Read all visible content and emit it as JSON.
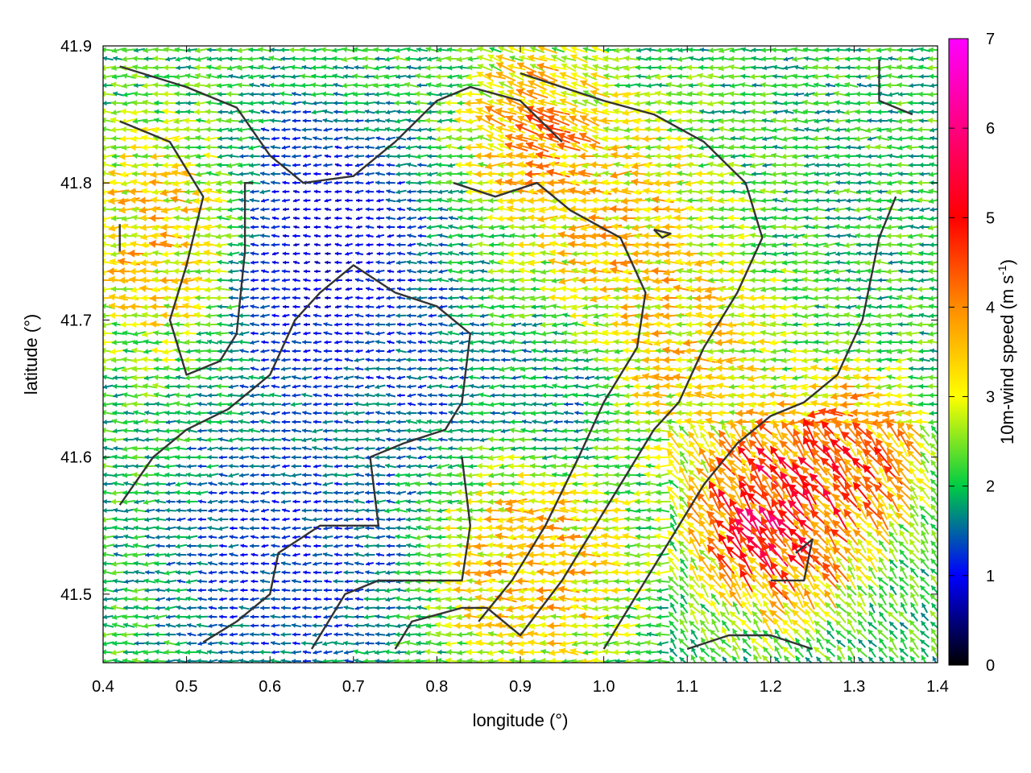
{
  "chart_data": {
    "type": "vector-field",
    "xlabel": "longitude (°)",
    "ylabel": "latitude (°)",
    "xlim": [
      0.4,
      1.4
    ],
    "ylim": [
      41.45,
      41.9
    ],
    "xticks": [
      0.4,
      0.5,
      0.6,
      0.7,
      0.8,
      0.9,
      1.0,
      1.1,
      1.2,
      1.3,
      1.4
    ],
    "xtick_labels": [
      "0.4",
      "0.5",
      "0.6",
      "0.7",
      "0.8",
      "0.9",
      "1.0",
      "1.1",
      "1.2",
      "1.3",
      "1.4"
    ],
    "yticks": [
      41.5,
      41.6,
      41.7,
      41.8,
      41.9
    ],
    "ytick_labels": [
      "41.5",
      "41.6",
      "41.7",
      "41.8",
      "41.9"
    ],
    "grid": true,
    "colorbar": {
      "label_main": "10m-wind speed (m s",
      "label_sup": "-1",
      "label_close": ")",
      "range": [
        0,
        7
      ],
      "ticks": [
        0,
        1,
        2,
        3,
        4,
        5,
        6,
        7
      ],
      "tick_labels": [
        "0",
        "1",
        "2",
        "3",
        "4",
        "5",
        "6",
        "7"
      ],
      "colors": [
        "#000000",
        "#0000ff",
        "#00cc44",
        "#ffff00",
        "#ff8c00",
        "#ff0000",
        "#ff00ff"
      ]
    },
    "wind_field": {
      "dominant_direction_deg": 270,
      "speed_regions": [
        {
          "lon": 0.48,
          "lat": 41.76,
          "radius_deg": 0.08,
          "speed": 3.8
        },
        {
          "lon": 0.65,
          "lat": 41.75,
          "radius_deg": 0.1,
          "speed": 0.5
        },
        {
          "lon": 0.75,
          "lat": 41.66,
          "radius_deg": 0.08,
          "speed": 1.3
        },
        {
          "lon": 0.62,
          "lat": 41.53,
          "radius_deg": 0.1,
          "speed": 1.0
        },
        {
          "lon": 0.92,
          "lat": 41.84,
          "radius_deg": 0.06,
          "speed": 4.2
        },
        {
          "lon": 1.05,
          "lat": 41.76,
          "radius_deg": 0.1,
          "speed": 3.7
        },
        {
          "lon": 1.1,
          "lat": 41.68,
          "radius_deg": 0.08,
          "speed": 3.4
        },
        {
          "lon": 0.92,
          "lat": 41.52,
          "radius_deg": 0.08,
          "speed": 3.8
        },
        {
          "lon": 1.21,
          "lat": 41.56,
          "radius_deg": 0.07,
          "speed": 5.6
        },
        {
          "lon": 1.3,
          "lat": 41.6,
          "radius_deg": 0.06,
          "speed": 4.6
        },
        {
          "lon": 1.2,
          "lat": 41.83,
          "radius_deg": 0.1,
          "speed": 2.0
        },
        {
          "lon": 0.95,
          "lat": 41.65,
          "radius_deg": 0.06,
          "speed": 1.5
        }
      ],
      "background_speed": 2.1
    },
    "contours": [
      [
        [
          0.42,
          41.885
        ],
        [
          0.5,
          41.87
        ],
        [
          0.56,
          41.855
        ],
        [
          0.6,
          41.82
        ],
        [
          0.64,
          41.8
        ],
        [
          0.7,
          41.805
        ],
        [
          0.75,
          41.83
        ],
        [
          0.8,
          41.86
        ],
        [
          0.84,
          41.87
        ],
        [
          0.9,
          41.86
        ],
        [
          0.95,
          41.83
        ]
      ],
      [
        [
          0.42,
          41.845
        ],
        [
          0.48,
          41.83
        ],
        [
          0.52,
          41.79
        ],
        [
          0.5,
          41.74
        ],
        [
          0.48,
          41.7
        ],
        [
          0.5,
          41.66
        ],
        [
          0.54,
          41.67
        ],
        [
          0.56,
          41.69
        ],
        [
          0.57,
          41.75
        ],
        [
          0.57,
          41.8
        ],
        [
          0.58,
          41.8
        ]
      ],
      [
        [
          0.42,
          41.565
        ],
        [
          0.46,
          41.6
        ],
        [
          0.5,
          41.62
        ],
        [
          0.55,
          41.635
        ],
        [
          0.6,
          41.66
        ],
        [
          0.63,
          41.7
        ],
        [
          0.66,
          41.72
        ],
        [
          0.7,
          41.74
        ],
        [
          0.75,
          41.72
        ],
        [
          0.8,
          41.71
        ],
        [
          0.84,
          41.69
        ],
        [
          0.83,
          41.64
        ],
        [
          0.81,
          41.62
        ],
        [
          0.76,
          41.61
        ],
        [
          0.72,
          41.6
        ],
        [
          0.73,
          41.55
        ],
        [
          0.66,
          41.55
        ],
        [
          0.61,
          41.53
        ],
        [
          0.6,
          41.5
        ],
        [
          0.56,
          41.48
        ],
        [
          0.52,
          41.465
        ]
      ],
      [
        [
          0.65,
          41.46
        ],
        [
          0.69,
          41.5
        ],
        [
          0.73,
          41.51
        ],
        [
          0.78,
          41.51
        ],
        [
          0.83,
          41.51
        ],
        [
          0.84,
          41.55
        ],
        [
          0.83,
          41.6
        ]
      ],
      [
        [
          0.75,
          41.46
        ],
        [
          0.77,
          41.48
        ],
        [
          0.83,
          41.49
        ],
        [
          0.86,
          41.49
        ],
        [
          0.9,
          41.47
        ],
        [
          0.95,
          41.51
        ],
        [
          0.99,
          41.55
        ],
        [
          1.02,
          41.58
        ],
        [
          1.06,
          41.62
        ],
        [
          1.09,
          41.64
        ],
        [
          1.12,
          41.68
        ],
        [
          1.16,
          41.72
        ],
        [
          1.19,
          41.76
        ],
        [
          1.17,
          41.8
        ],
        [
          1.12,
          41.83
        ],
        [
          1.06,
          41.85
        ],
        [
          1.0,
          41.86
        ],
        [
          0.95,
          41.87
        ],
        [
          0.9,
          41.88
        ]
      ],
      [
        [
          0.82,
          41.8
        ],
        [
          0.87,
          41.79
        ],
        [
          0.92,
          41.8
        ],
        [
          0.96,
          41.78
        ],
        [
          1.02,
          41.76
        ],
        [
          1.05,
          41.72
        ],
        [
          1.04,
          41.68
        ],
        [
          1.0,
          41.64
        ],
        [
          0.97,
          41.6
        ],
        [
          0.93,
          41.55
        ],
        [
          0.89,
          41.51
        ],
        [
          0.85,
          41.48
        ]
      ],
      [
        [
          1.0,
          41.46
        ],
        [
          1.04,
          41.5
        ],
        [
          1.08,
          41.54
        ],
        [
          1.12,
          41.58
        ],
        [
          1.16,
          41.61
        ],
        [
          1.2,
          41.63
        ],
        [
          1.24,
          41.64
        ],
        [
          1.28,
          41.66
        ],
        [
          1.31,
          41.7
        ],
        [
          1.33,
          41.76
        ],
        [
          1.35,
          41.79
        ]
      ],
      [
        [
          1.2,
          41.51
        ],
        [
          1.24,
          41.51
        ],
        [
          1.25,
          41.54
        ],
        [
          1.23,
          41.53
        ]
      ],
      [
        [
          1.06,
          41.766
        ],
        [
          1.08,
          41.763
        ],
        [
          1.07,
          41.76
        ],
        [
          1.06,
          41.766
        ]
      ],
      [
        [
          0.42,
          41.77
        ],
        [
          0.42,
          41.75
        ]
      ],
      [
        [
          1.1,
          41.46
        ],
        [
          1.15,
          41.47
        ],
        [
          1.2,
          41.47
        ],
        [
          1.25,
          41.46
        ]
      ],
      [
        [
          1.33,
          41.89
        ],
        [
          1.33,
          41.86
        ],
        [
          1.37,
          41.85
        ]
      ]
    ]
  }
}
